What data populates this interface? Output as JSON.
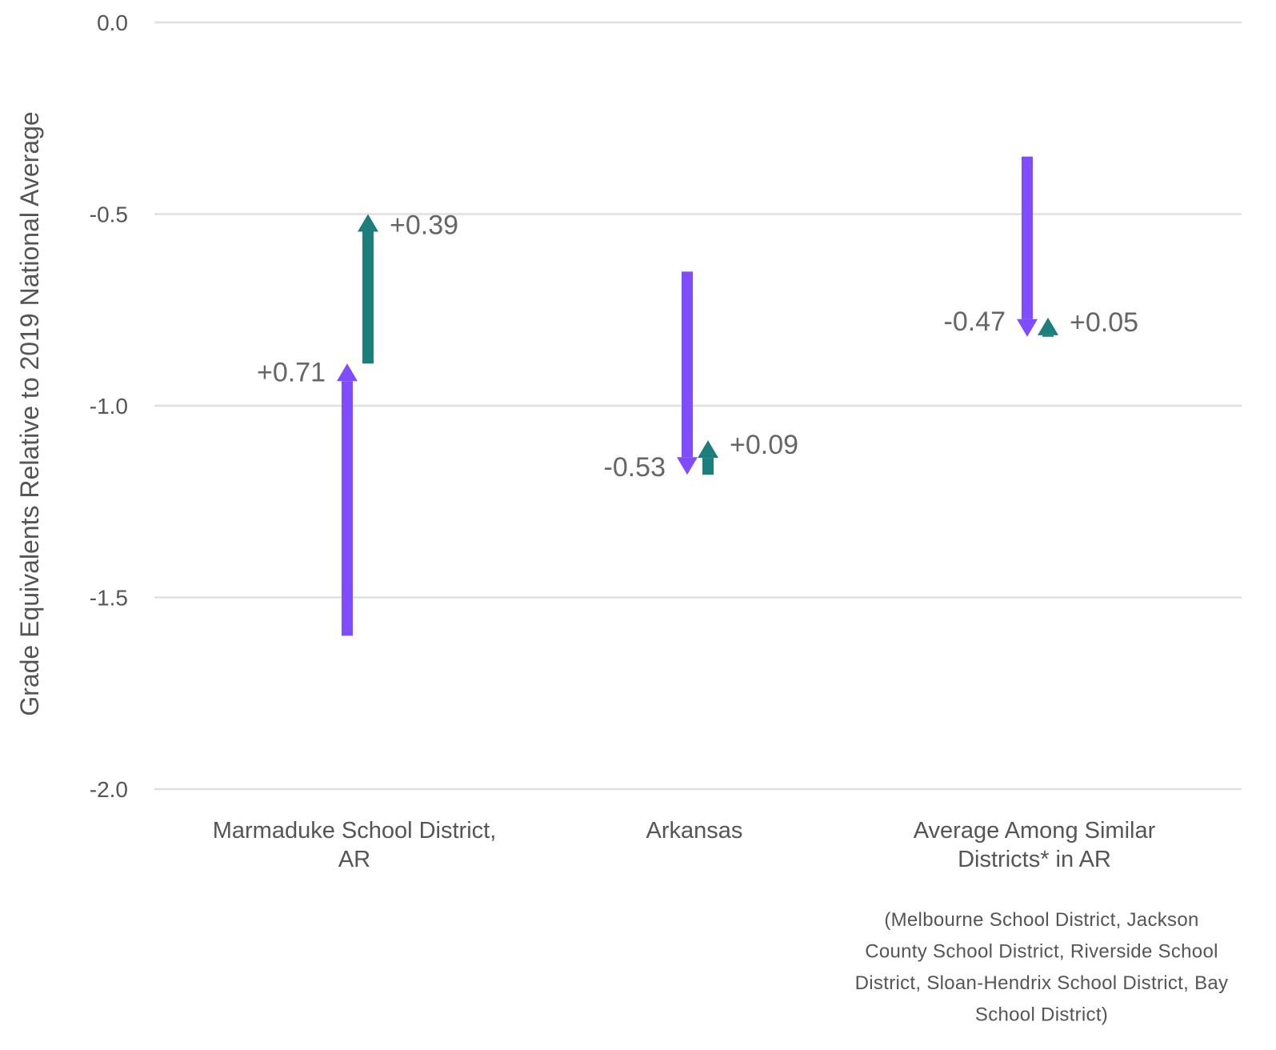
{
  "chart_data": {
    "type": "arrow",
    "ylabel": "Grade Equivalents Relative to 2019 National Average",
    "xlabel": "",
    "ylim": [
      -2.0,
      0.0
    ],
    "yticks": [
      "0.0",
      "-0.5",
      "-1.0",
      "-1.5",
      "-2.0"
    ],
    "grid": true,
    "categories": [
      {
        "label_lines": [
          "Marmaduke School District,",
          "AR"
        ],
        "note_lines": []
      },
      {
        "label_lines": [
          "Arkansas"
        ],
        "note_lines": []
      },
      {
        "label_lines": [
          "Average Among Similar",
          "Districts* in AR"
        ],
        "note_lines": [
          "(Melbourne School District, Jackson",
          "County School District, Riverside School",
          "District, Sloan-Hendrix School District, Bay",
          "School District)"
        ]
      }
    ],
    "series": [
      {
        "color": "#7f4dff",
        "arrows": [
          {
            "from": -1.6,
            "to": -0.89,
            "label": "+0.71"
          },
          {
            "from": -0.65,
            "to": -1.18,
            "label": "-0.53"
          },
          {
            "from": -0.35,
            "to": -0.82,
            "label": "-0.47"
          }
        ]
      },
      {
        "color": "#1c7f7b",
        "arrows": [
          {
            "from": -0.89,
            "to": -0.5,
            "label": "+0.39"
          },
          {
            "from": -1.18,
            "to": -1.09,
            "label": "+0.09"
          },
          {
            "from": -0.82,
            "to": -0.77,
            "label": "+0.05"
          }
        ]
      }
    ]
  }
}
